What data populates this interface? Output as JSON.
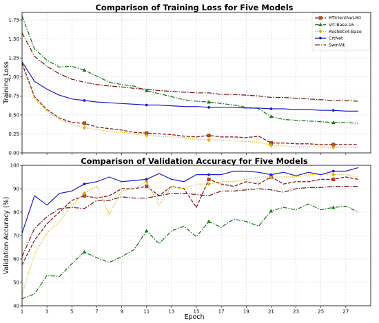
{
  "chart_data": [
    {
      "type": "line",
      "title": "Comparison of Training Loss for Five Models",
      "xlabel": "",
      "ylabel": "Training Loss",
      "xlim": [
        1,
        29
      ],
      "ylim": [
        0,
        1.85
      ],
      "yticks": [
        "0.00",
        "0.25",
        "0.50",
        "0.75",
        "1.00",
        "1.25",
        "1.50",
        "1.75"
      ],
      "grid": true,
      "legend": "top-right",
      "x": [
        1,
        2,
        3,
        4,
        5,
        6,
        7,
        8,
        9,
        10,
        11,
        12,
        13,
        14,
        15,
        16,
        17,
        18,
        19,
        20,
        21,
        22,
        23,
        24,
        25,
        26,
        27,
        28
      ],
      "series": [
        {
          "name": "EfficientNet-B0",
          "color": "#8b1a1a",
          "dash": "5,2",
          "marker": "square",
          "marker_color": "#cc4400",
          "values": [
            1.18,
            0.74,
            0.57,
            0.46,
            0.4,
            0.39,
            0.34,
            0.32,
            0.3,
            0.27,
            0.26,
            0.25,
            0.24,
            0.22,
            0.21,
            0.23,
            0.21,
            0.21,
            0.2,
            0.22,
            0.13,
            0.13,
            0.12,
            0.12,
            0.11,
            0.11,
            0.11,
            0.11
          ]
        },
        {
          "name": "ViT-Base-16",
          "color": "#1a7a1a",
          "dash": "6,2,1.5,2",
          "marker": "triangle",
          "marker_color": "#1a7a1a",
          "values": [
            1.8,
            1.37,
            1.22,
            1.13,
            1.14,
            1.09,
            1.01,
            0.93,
            0.9,
            0.88,
            0.82,
            0.78,
            0.74,
            0.7,
            0.68,
            0.67,
            0.65,
            0.63,
            0.6,
            0.58,
            0.48,
            0.44,
            0.43,
            0.42,
            0.41,
            0.4,
            0.4,
            0.39
          ]
        },
        {
          "name": "ResNet34-Base",
          "color": "#e0b000",
          "dash": "1.2,1.8",
          "marker": "diamond",
          "marker_color": "#e0b000",
          "values": [
            1.15,
            0.72,
            0.55,
            0.44,
            0.38,
            0.33,
            0.31,
            0.28,
            0.27,
            0.25,
            0.23,
            0.22,
            0.21,
            0.2,
            0.18,
            0.17,
            0.17,
            0.16,
            0.15,
            0.14,
            0.1,
            0.09,
            0.08,
            0.08,
            0.08,
            0.07,
            0.07,
            0.07
          ]
        },
        {
          "name": "CrtNet",
          "color": "#1a1acc",
          "dash": "",
          "marker": "circle",
          "marker_color": "#1a1acc",
          "values": [
            1.2,
            0.94,
            0.84,
            0.76,
            0.71,
            0.69,
            0.67,
            0.66,
            0.65,
            0.64,
            0.63,
            0.63,
            0.62,
            0.61,
            0.61,
            0.6,
            0.6,
            0.6,
            0.59,
            0.59,
            0.58,
            0.58,
            0.57,
            0.57,
            0.56,
            0.56,
            0.55,
            0.55
          ]
        },
        {
          "name": "SwinVit",
          "color": "#7a1f1f",
          "dash": "7,2,1.5,2",
          "marker": "none",
          "marker_color": "#7a1f1f",
          "values": [
            1.58,
            1.27,
            1.14,
            1.04,
            0.97,
            0.93,
            0.9,
            0.88,
            0.87,
            0.85,
            0.84,
            0.82,
            0.81,
            0.8,
            0.79,
            0.79,
            0.77,
            0.77,
            0.76,
            0.75,
            0.73,
            0.73,
            0.72,
            0.71,
            0.7,
            0.69,
            0.69,
            0.68
          ]
        }
      ]
    },
    {
      "type": "line",
      "title": "Comparison of Validation Accuracy for Five Models",
      "xlabel": "Epoch",
      "ylabel": "Validation Accuracy (%)",
      "xlim": [
        1,
        29
      ],
      "ylim": [
        40,
        100
      ],
      "yticks": [
        "40",
        "50",
        "60",
        "70",
        "80",
        "90",
        "100"
      ],
      "xticks": [
        "1",
        "3",
        "5",
        "7",
        "9",
        "11",
        "13",
        "15",
        "17",
        "19",
        "21",
        "23",
        "25",
        "27"
      ],
      "grid": true,
      "x": [
        1,
        2,
        3,
        4,
        5,
        6,
        7,
        8,
        9,
        10,
        11,
        12,
        13,
        14,
        15,
        16,
        17,
        18,
        19,
        20,
        21,
        22,
        23,
        24,
        25,
        26,
        27,
        28
      ],
      "series": [
        {
          "name": "EfficientNet-B0",
          "values": [
            57.5,
            68,
            75,
            80,
            85,
            87,
            86,
            87,
            90,
            90,
            91,
            87,
            91,
            90,
            82,
            94,
            92,
            91,
            93,
            92,
            95,
            92,
            93,
            93,
            94,
            94,
            95,
            94
          ]
        },
        {
          "name": "ViT-Base-16",
          "values": [
            43,
            45,
            53,
            52.5,
            58,
            63,
            60.5,
            58.5,
            61,
            64,
            72,
            66.5,
            72,
            74,
            69.5,
            76,
            73.5,
            77,
            76,
            74,
            80.5,
            82,
            81,
            83.5,
            81,
            82,
            82.5,
            80
          ]
        },
        {
          "name": "ResNet34-Base",
          "values": [
            45,
            62,
            71,
            76,
            83,
            88,
            91,
            79,
            89,
            90,
            93,
            83,
            91,
            90,
            92,
            92,
            93,
            93,
            94,
            95,
            95,
            95,
            95,
            96,
            96,
            96,
            96,
            95
          ]
        },
        {
          "name": "CrtNet",
          "values": [
            71,
            87,
            83,
            88,
            89,
            92,
            93,
            95,
            93,
            93.5,
            94,
            96.5,
            94,
            93,
            96,
            96,
            96,
            97.5,
            97.5,
            97,
            96,
            97,
            95.5,
            97,
            96,
            97.5,
            97.5,
            99
          ]
        },
        {
          "name": "SwinVit",
          "values": [
            61,
            73,
            78,
            81.5,
            82,
            81.5,
            85,
            85,
            86.5,
            86,
            86,
            87,
            88,
            88,
            87.5,
            87,
            89,
            89,
            89.5,
            90,
            89.5,
            88.5,
            90,
            90.5,
            90.5,
            91,
            91,
            91
          ]
        }
      ]
    }
  ]
}
